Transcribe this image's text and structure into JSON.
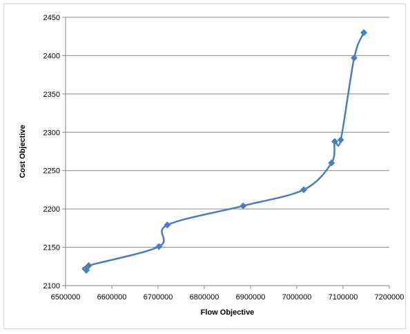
{
  "chart_data": {
    "type": "scatter",
    "xlabel": "Flow Objective",
    "ylabel": "Cost Objective",
    "xlim": [
      6500000,
      7200000
    ],
    "ylim": [
      2100,
      2450
    ],
    "xticks": [
      6500000,
      6600000,
      6700000,
      6800000,
      6900000,
      7000000,
      7100000,
      7200000
    ],
    "yticks": [
      2100,
      2150,
      2200,
      2250,
      2300,
      2350,
      2400,
      2450
    ],
    "xtick_labels": [
      "6500000",
      "6600000",
      "6700000",
      "6800000",
      "6900000",
      "7000000",
      "7100000",
      "7200000"
    ],
    "ytick_labels": [
      "2100",
      "2150",
      "2200",
      "2250",
      "2300",
      "2350",
      "2400",
      "2450"
    ],
    "grid": true,
    "smooth_line": true,
    "marker": "diamond",
    "series": [
      {
        "color": "#4a7ebb",
        "x": [
          6545000,
          6550000,
          6702000,
          6720000,
          6884000,
          7015000,
          7075000,
          7082000,
          7095000,
          7124000,
          7145000
        ],
        "y": [
          2120,
          2126,
          2151,
          2179,
          2204,
          2225,
          2260,
          2288,
          2290,
          2397,
          2430
        ]
      }
    ]
  }
}
